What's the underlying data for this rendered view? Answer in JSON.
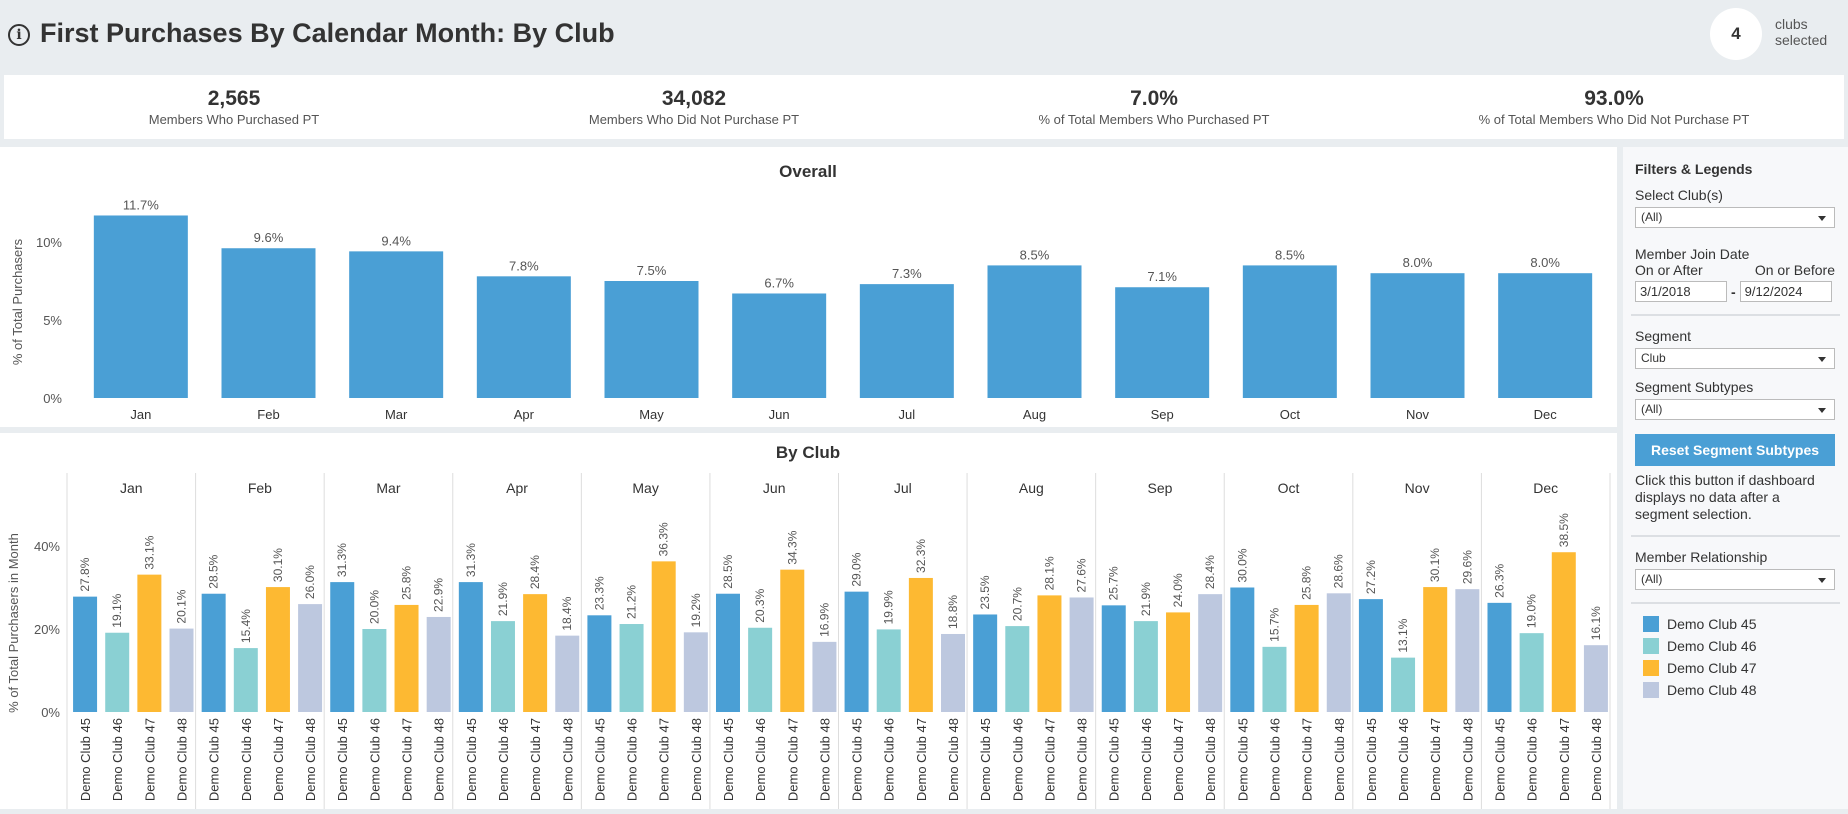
{
  "header": {
    "title": "First Purchases By Calendar Month: By Club",
    "clubs_count": "4",
    "clubs_label": "clubs selected"
  },
  "kpis": [
    {
      "value": "2,565",
      "label": "Members Who Purchased PT"
    },
    {
      "value": "34,082",
      "label": "Members Who Did Not Purchase PT"
    },
    {
      "value": "7.0%",
      "label": "% of Total Members Who Purchased PT"
    },
    {
      "value": "93.0%",
      "label": "% of Total Members Who Did Not Purchase PT"
    }
  ],
  "sidebar": {
    "title": "Filters & Legends",
    "select_clubs_label": "Select Club(s)",
    "select_clubs_value": "(All)",
    "join_date_label": "Member Join Date",
    "after_label": "On or After",
    "before_label": "On or Before",
    "after_value": "3/1/2018",
    "dash": "-",
    "before_value": "9/12/2024",
    "segment_label": "Segment",
    "segment_value": "Club",
    "subtypes_label": "Segment Subtypes",
    "subtypes_value": "(All)",
    "reset_button": "Reset Segment Subtypes",
    "note": "Click this button if dashboard displays no data after a segment selection.",
    "relationship_label": "Member Relationship",
    "relationship_value": "(All)"
  },
  "chart_data": [
    {
      "type": "bar",
      "title": "Overall",
      "ylabel": "% of Total Purchasers",
      "ylim": [
        0,
        12
      ],
      "yticks": [
        "0%",
        "5%",
        "10%"
      ],
      "grid": false,
      "categories": [
        "Jan",
        "Feb",
        "Mar",
        "Apr",
        "May",
        "Jun",
        "Jul",
        "Aug",
        "Sep",
        "Oct",
        "Nov",
        "Dec"
      ],
      "values": [
        11.7,
        9.6,
        9.4,
        7.8,
        7.5,
        6.7,
        7.3,
        8.5,
        7.1,
        8.5,
        8.0,
        8.0
      ],
      "color": "#4a9fd5"
    },
    {
      "type": "bar",
      "title": "By Club",
      "ylabel": "% of Total Purchasers in Month",
      "ylim": [
        0,
        50
      ],
      "yticks": [
        "0%",
        "20%",
        "40%"
      ],
      "grid": false,
      "legend": "right",
      "categories": [
        "Jan",
        "Feb",
        "Mar",
        "Apr",
        "May",
        "Jun",
        "Jul",
        "Aug",
        "Sep",
        "Oct",
        "Nov",
        "Dec"
      ],
      "series": [
        {
          "name": "Demo Club 45",
          "color": "#4a9fd5",
          "values": [
            27.8,
            28.5,
            31.3,
            31.3,
            23.3,
            28.5,
            29.0,
            23.5,
            25.7,
            30.0,
            27.2,
            26.3
          ]
        },
        {
          "name": "Demo Club 46",
          "color": "#8ad0d3",
          "values": [
            19.1,
            15.4,
            20.0,
            21.9,
            21.2,
            20.3,
            19.9,
            20.7,
            21.9,
            15.7,
            13.1,
            19.0
          ]
        },
        {
          "name": "Demo Club 47",
          "color": "#fdb932",
          "values": [
            33.1,
            30.1,
            25.8,
            28.4,
            36.3,
            34.3,
            32.3,
            28.1,
            24.0,
            25.8,
            30.1,
            38.5
          ]
        },
        {
          "name": "Demo Club 48",
          "color": "#bdc8df",
          "values": [
            20.1,
            26.0,
            22.9,
            18.4,
            19.2,
            16.9,
            18.8,
            27.6,
            28.4,
            28.6,
            29.6,
            16.1
          ]
        }
      ]
    }
  ]
}
